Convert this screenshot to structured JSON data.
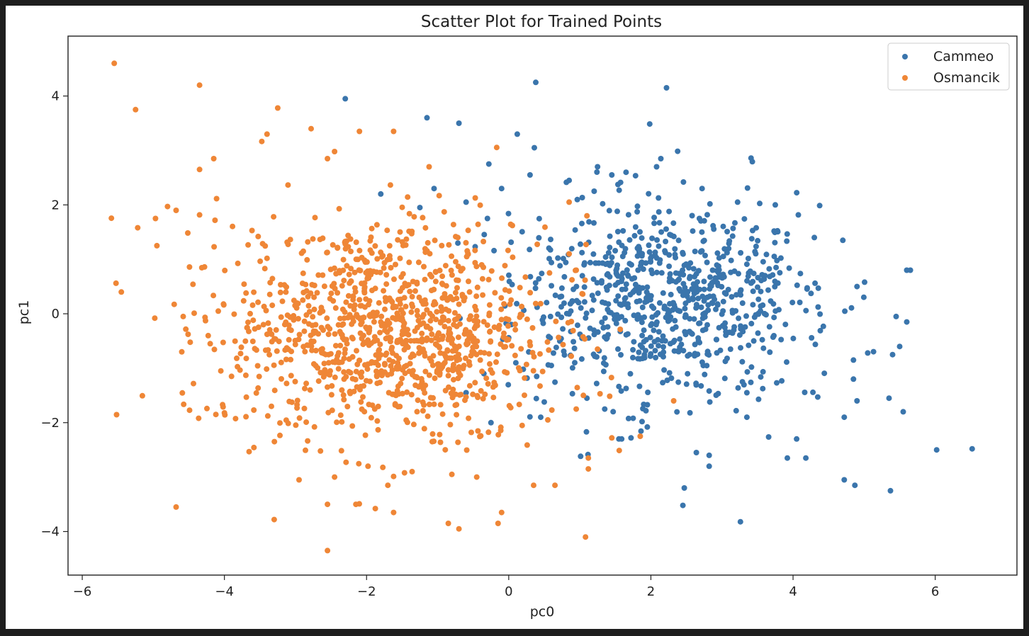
{
  "chart_data": {
    "type": "scatter",
    "title": "Scatter Plot for Trained Points",
    "xlabel": "pc0",
    "ylabel": "pc1",
    "xlim": [
      -6.2,
      7.15
    ],
    "ylim": [
      -4.8,
      5.1
    ],
    "xticks": [
      -6,
      -4,
      -2,
      0,
      2,
      4,
      6
    ],
    "yticks": [
      -4,
      -2,
      0,
      2,
      4
    ],
    "grid": false,
    "legend_position": "top-right",
    "series": [
      {
        "name": "Cammeo",
        "color": "#3a75ac",
        "points": [
          [
            -2.3,
            3.95
          ],
          [
            0.38,
            4.25
          ],
          [
            2.22,
            4.15
          ],
          [
            -1.15,
            3.6
          ],
          [
            -0.7,
            3.5
          ],
          [
            0.12,
            3.3
          ],
          [
            -0.28,
            2.75
          ],
          [
            0.36,
            3.05
          ],
          [
            2.14,
            2.85
          ],
          [
            2.72,
            2.3
          ],
          [
            3.22,
            2.05
          ],
          [
            3.75,
            2.0
          ],
          [
            4.7,
            1.35
          ],
          [
            4.3,
            1.4
          ],
          [
            5.6,
            0.8
          ],
          [
            5.65,
            0.8
          ],
          [
            4.9,
            0.5
          ],
          [
            5.45,
            -0.05
          ],
          [
            5.6,
            -0.15
          ],
          [
            5.5,
            -0.6
          ],
          [
            5.4,
            -0.75
          ],
          [
            5.05,
            -0.72
          ],
          [
            4.85,
            -0.85
          ],
          [
            4.85,
            -1.2
          ],
          [
            5.35,
            -1.55
          ],
          [
            5.55,
            -1.8
          ],
          [
            4.9,
            -1.6
          ],
          [
            4.72,
            -1.9
          ],
          [
            6.02,
            -2.5
          ],
          [
            6.52,
            -2.48
          ],
          [
            4.72,
            -3.05
          ],
          [
            4.87,
            -3.15
          ],
          [
            5.37,
            -3.25
          ],
          [
            3.92,
            -2.65
          ],
          [
            4.18,
            -2.65
          ],
          [
            4.05,
            -2.3
          ],
          [
            3.35,
            -1.9
          ],
          [
            2.82,
            -2.6
          ],
          [
            2.82,
            -2.8
          ],
          [
            2.64,
            -2.55
          ],
          [
            2.47,
            -3.2
          ],
          [
            2.45,
            -3.52
          ],
          [
            3.26,
            -3.82
          ],
          [
            1.72,
            -2.28
          ],
          [
            1.95,
            -2.08
          ],
          [
            1.75,
            -1.92
          ],
          [
            2.55,
            -1.82
          ],
          [
            3.2,
            -1.78
          ],
          [
            3.35,
            -1.45
          ],
          [
            1.55,
            -2.3
          ],
          [
            1.35,
            -1.75
          ],
          [
            1.1,
            -1.55
          ],
          [
            0.5,
            -1.62
          ],
          [
            0.45,
            -1.9
          ],
          [
            -0.25,
            -2.0
          ],
          [
            -0.6,
            -1.45
          ],
          [
            -0.35,
            -1.1
          ],
          [
            0.1,
            -0.9
          ],
          [
            0.6,
            -0.95
          ],
          [
            -0.3,
            1.75
          ],
          [
            -0.6,
            2.05
          ],
          [
            -1.05,
            2.3
          ],
          [
            -1.25,
            1.95
          ],
          [
            -1.8,
            2.2
          ],
          [
            -0.1,
            2.3
          ],
          [
            0.3,
            2.55
          ],
          [
            0.85,
            2.45
          ],
          [
            1.25,
            2.7
          ],
          [
            1.45,
            2.55
          ],
          [
            1.65,
            2.6
          ],
          [
            2.08,
            2.7
          ]
        ],
        "cluster": {
          "center": [
            2.2,
            0.25
          ],
          "spread": [
            1.05,
            0.85
          ],
          "count": 760
        }
      },
      {
        "name": "Osmancik",
        "color": "#ef8636",
        "points": [
          [
            -5.55,
            4.6
          ],
          [
            -4.35,
            4.2
          ],
          [
            -5.25,
            3.75
          ],
          [
            -3.25,
            3.78
          ],
          [
            -3.4,
            3.3
          ],
          [
            -2.78,
            3.4
          ],
          [
            -2.1,
            3.35
          ],
          [
            -1.62,
            3.35
          ],
          [
            -4.15,
            2.85
          ],
          [
            -4.35,
            2.65
          ],
          [
            -4.97,
            1.75
          ],
          [
            -4.95,
            1.25
          ],
          [
            -5.22,
            1.58
          ],
          [
            -4.8,
            1.97
          ],
          [
            -4.68,
            1.9
          ],
          [
            -5.45,
            0.4
          ],
          [
            -4.98,
            -0.08
          ],
          [
            -4.58,
            -0.05
          ],
          [
            -4.6,
            -0.7
          ],
          [
            -4.2,
            -0.55
          ],
          [
            -4.05,
            -1.05
          ],
          [
            -4.12,
            -1.85
          ],
          [
            -3.9,
            -1.15
          ],
          [
            -4.68,
            -3.55
          ],
          [
            -3.3,
            -3.78
          ],
          [
            -2.95,
            -3.05
          ],
          [
            -2.55,
            -3.5
          ],
          [
            -2.45,
            -3.0
          ],
          [
            -2.55,
            -4.35
          ],
          [
            -2.15,
            -3.5
          ],
          [
            -1.98,
            -2.8
          ],
          [
            -1.62,
            -3.65
          ],
          [
            -1.7,
            -3.15
          ],
          [
            -0.85,
            -3.85
          ],
          [
            -0.7,
            -3.95
          ],
          [
            -0.15,
            -3.85
          ],
          [
            -0.1,
            -3.65
          ],
          [
            -0.45,
            -3.0
          ],
          [
            -0.8,
            -2.95
          ],
          [
            0.35,
            -3.15
          ],
          [
            0.65,
            -3.15
          ],
          [
            1.08,
            -4.1
          ],
          [
            1.12,
            -2.65
          ],
          [
            1.12,
            -2.85
          ],
          [
            0.95,
            -1.75
          ],
          [
            1.05,
            -1.5
          ],
          [
            0.55,
            -1.95
          ],
          [
            1.45,
            -2.28
          ],
          [
            1.85,
            -2.25
          ],
          [
            2.32,
            -1.6
          ],
          [
            1.25,
            -0.65
          ],
          [
            0.95,
            0.8
          ],
          [
            0.85,
            1.1
          ],
          [
            1.1,
            1.8
          ],
          [
            0.85,
            2.05
          ],
          [
            -1.12,
            2.7
          ],
          [
            -2.55,
            2.85
          ],
          [
            -2.45,
            2.98
          ]
        ],
        "cluster": {
          "center": [
            -1.7,
            -0.35
          ],
          "spread": [
            1.15,
            1.0
          ],
          "count": 1100
        }
      }
    ]
  }
}
